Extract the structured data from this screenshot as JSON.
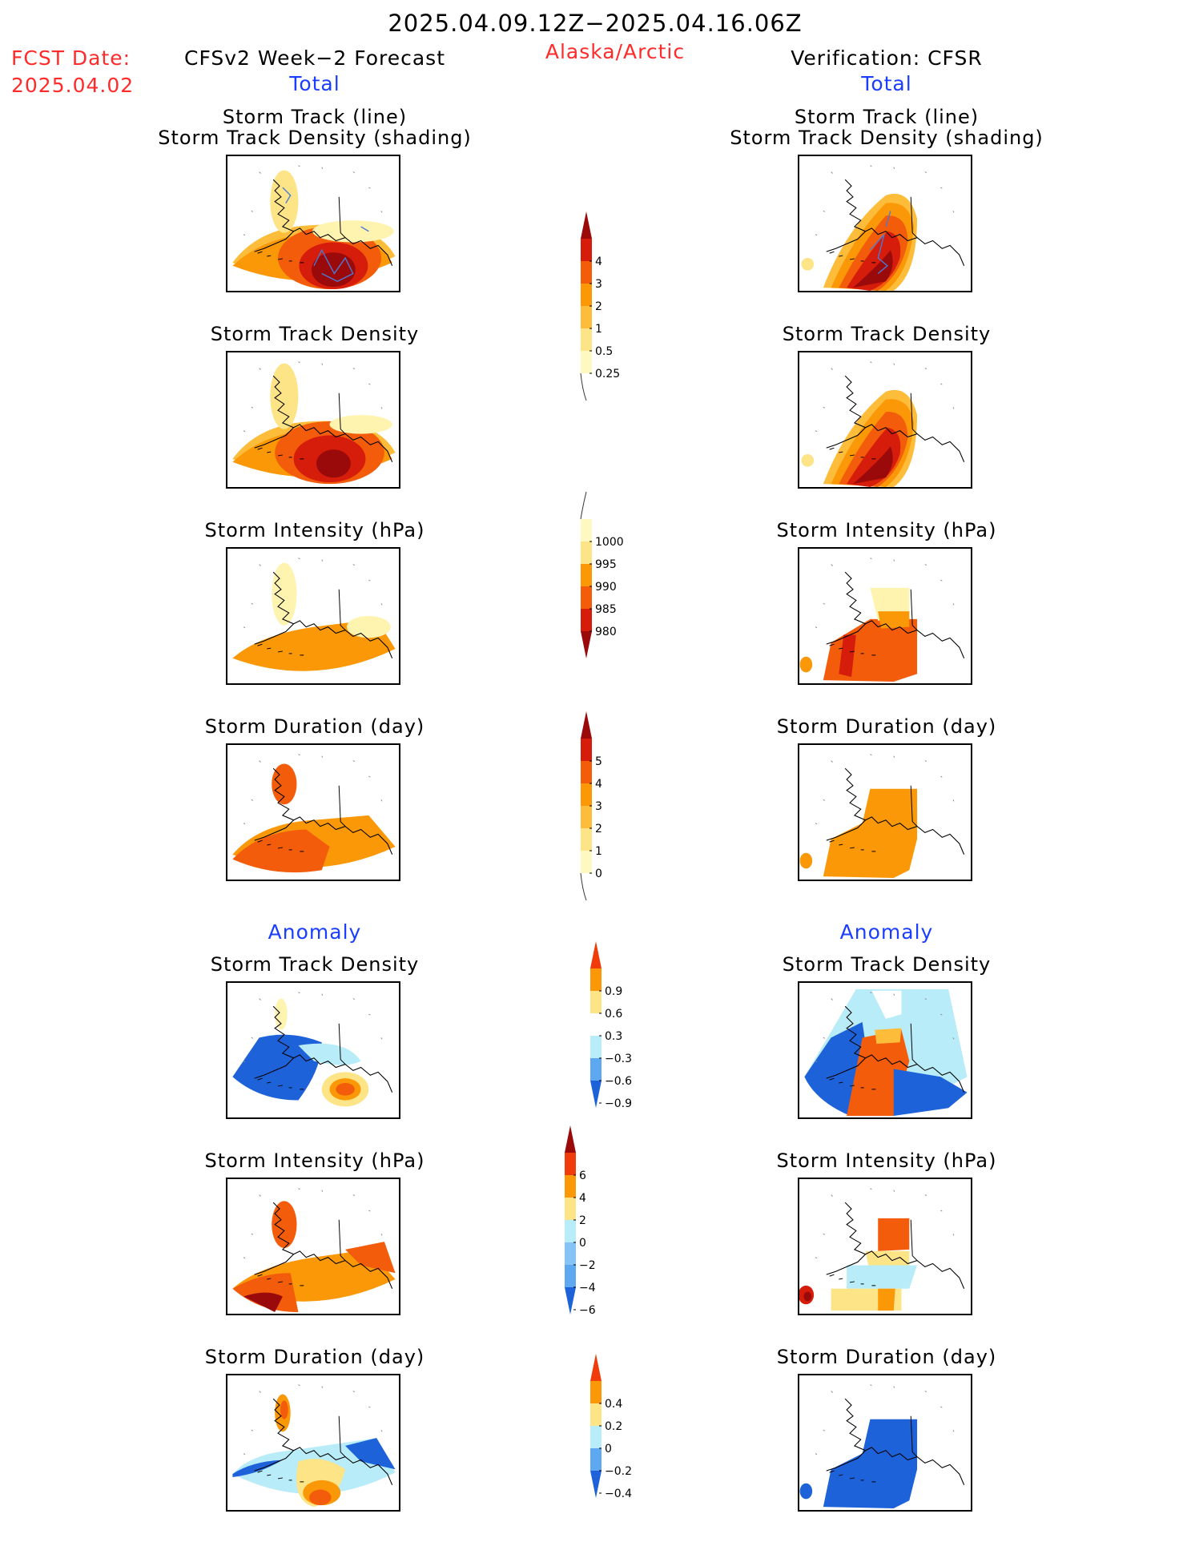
{
  "header": {
    "date_range": "2025.04.09.12Z−2025.04.16.06Z",
    "region": "Alaska/Arctic",
    "fcst_label": "FCST Date:",
    "fcst_date": "2025.04.02",
    "left_title": "CFSv2 Week−2 Forecast",
    "right_title": "Verification: CFSR",
    "total_label": "Total",
    "anomaly_label": "Anomaly"
  },
  "panel_titles": {
    "track_line": "Storm Track (line)",
    "track_shading": "Storm Track Density (shading)",
    "track_density": "Storm Track Density",
    "intensity": "Storm Intensity (hPa)",
    "duration": "Storm Duration (day)"
  },
  "colorbars": [
    {
      "id": "density_total",
      "labels": [
        "4",
        "3",
        "2",
        "1",
        "0.5",
        "0.25"
      ],
      "colors": [
        "#9b0a0a",
        "#d61c0a",
        "#f25c0a",
        "#fb9808",
        "#fdbd3a",
        "#fde486",
        "#fff8c0"
      ]
    },
    {
      "id": "intensity_total",
      "labels": [
        "1000",
        "995",
        "990",
        "985",
        "980"
      ],
      "colors": [
        "#fff8c0",
        "#fde486",
        "#fb9808",
        "#f25c0a",
        "#d61c0a",
        "#9b0a0a"
      ]
    },
    {
      "id": "duration_total",
      "labels": [
        "5",
        "4",
        "3",
        "2",
        "1",
        "0"
      ],
      "colors": [
        "#9b0a0a",
        "#d61c0a",
        "#f25c0a",
        "#fb9808",
        "#fdbd3a",
        "#fde486",
        "#fff8c0"
      ]
    },
    {
      "id": "density_anom",
      "labels": [
        "0.9",
        "0.6",
        "0.3",
        "−0.3",
        "−0.6",
        "−0.9"
      ],
      "colors": [
        "#f03c0a",
        "#fb9808",
        "#fde486",
        "#ffffff",
        "#b8ecf8",
        "#5ea8f2",
        "#1d62d9"
      ]
    },
    {
      "id": "intensity_anom",
      "labels": [
        "6",
        "4",
        "2",
        "0",
        "−2",
        "−4",
        "−6"
      ],
      "colors": [
        "#9b0a0a",
        "#f03c0a",
        "#fb9808",
        "#fde486",
        "#b8ecf8",
        "#86c4f8",
        "#5ea8f2",
        "#1d62d9"
      ]
    },
    {
      "id": "duration_anom",
      "labels": [
        "0.4",
        "0.2",
        "0",
        "−0.2",
        "−0.4"
      ],
      "colors": [
        "#f03c0a",
        "#fb9808",
        "#fde486",
        "#b8ecf8",
        "#5ea8f2",
        "#1d62d9"
      ]
    }
  ]
}
